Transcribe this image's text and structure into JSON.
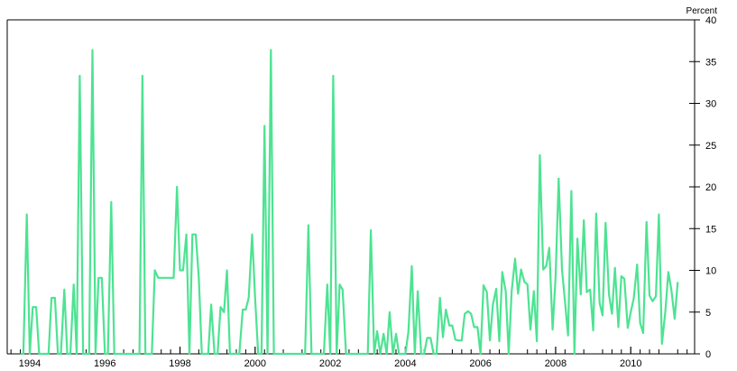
{
  "chart_data": {
    "type": "line",
    "title": "",
    "xlabel": "",
    "ylabel": "Percent",
    "ylabel_position": "top-right",
    "y_axis_side": "right",
    "grid": false,
    "xlim": [
      1993.4,
      2011.7
    ],
    "ylim": [
      0,
      40
    ],
    "y_ticks": [
      0,
      5,
      10,
      15,
      20,
      25,
      30,
      35,
      40
    ],
    "x_tick_labels": [
      "1994",
      "1996",
      "1998",
      "2000",
      "2002",
      "2004",
      "2006",
      "2008",
      "2010"
    ],
    "x_tick_values": [
      1994,
      1996,
      1998,
      2000,
      2002,
      2004,
      2006,
      2008,
      2010
    ],
    "series": [
      {
        "name": "",
        "color": "#4de392",
        "x": [
          1993.75,
          1993.83,
          1993.92,
          1994.0,
          1994.08,
          1994.17,
          1994.25,
          1994.33,
          1994.42,
          1994.5,
          1994.58,
          1994.67,
          1994.75,
          1994.83,
          1994.92,
          1995.0,
          1995.08,
          1995.17,
          1995.25,
          1995.33,
          1995.42,
          1995.5,
          1995.58,
          1995.67,
          1995.75,
          1995.83,
          1995.92,
          1996.0,
          1996.08,
          1996.17,
          1996.25,
          1996.33,
          1996.42,
          1996.5,
          1996.58,
          1996.67,
          1996.75,
          1996.83,
          1996.92,
          1997.0,
          1997.08,
          1997.17,
          1997.25,
          1997.33,
          1997.42,
          1997.5,
          1997.58,
          1997.67,
          1997.75,
          1997.83,
          1997.92,
          1998.0,
          1998.08,
          1998.17,
          1998.25,
          1998.33,
          1998.42,
          1998.5,
          1998.58,
          1998.67,
          1998.75,
          1998.83,
          1998.92,
          1999.0,
          1999.08,
          1999.17,
          1999.25,
          1999.33,
          1999.42,
          1999.5,
          1999.58,
          1999.67,
          1999.75,
          1999.83,
          1999.92,
          2000.0,
          2000.08,
          2000.17,
          2000.25,
          2000.33,
          2000.42,
          2000.5,
          2000.58,
          2000.67,
          2000.75,
          2000.83,
          2000.92,
          2001.0,
          2001.08,
          2001.17,
          2001.25,
          2001.33,
          2001.42,
          2001.5,
          2001.58,
          2001.67,
          2001.75,
          2001.83,
          2001.92,
          2002.0,
          2002.08,
          2002.17,
          2002.25,
          2002.33,
          2002.42,
          2002.5,
          2002.58,
          2002.67,
          2002.75,
          2002.83,
          2002.92,
          2003.0,
          2003.08,
          2003.17,
          2003.25,
          2003.33,
          2003.42,
          2003.5,
          2003.58,
          2003.67,
          2003.75,
          2003.83,
          2003.92,
          2004.0,
          2004.08,
          2004.17,
          2004.25,
          2004.33,
          2004.42,
          2004.5,
          2004.58,
          2004.67,
          2004.75,
          2004.83,
          2004.92,
          2005.0,
          2005.08,
          2005.17,
          2005.25,
          2005.33,
          2005.42,
          2005.5,
          2005.58,
          2005.67,
          2005.75,
          2005.83,
          2005.92,
          2006.0,
          2006.08,
          2006.17,
          2006.25,
          2006.33,
          2006.42,
          2006.5,
          2006.58,
          2006.67,
          2006.75,
          2006.83,
          2006.92,
          2007.0,
          2007.08,
          2007.17,
          2007.25,
          2007.33,
          2007.42,
          2007.5,
          2007.58,
          2007.67,
          2007.75,
          2007.83,
          2007.92,
          2008.0,
          2008.08,
          2008.17,
          2008.25,
          2008.33,
          2008.42,
          2008.5,
          2008.58,
          2008.67,
          2008.75,
          2008.83,
          2008.92,
          2009.0,
          2009.08,
          2009.17,
          2009.25,
          2009.33,
          2009.42,
          2009.5,
          2009.58,
          2009.67,
          2009.75,
          2009.83,
          2009.92,
          2010.0,
          2010.08,
          2010.17,
          2010.25,
          2010.33,
          2010.42,
          2010.5,
          2010.58,
          2010.67,
          2010.75,
          2010.83,
          2010.92,
          2011.0,
          2011.08,
          2011.17,
          2011.25
        ],
        "y": [
          0,
          0,
          16.7,
          0,
          5.6,
          5.6,
          0,
          0,
          0,
          0,
          6.7,
          6.7,
          0,
          0,
          7.7,
          0,
          0,
          8.3,
          0,
          33.3,
          0,
          0,
          0,
          36.4,
          0,
          9.1,
          9.1,
          0,
          0,
          18.2,
          0,
          0,
          0,
          0,
          0,
          0,
          0,
          0,
          0,
          33.3,
          0,
          0,
          0,
          10.0,
          9.1,
          9.1,
          9.1,
          9.1,
          9.1,
          9.1,
          20.0,
          10.0,
          10.0,
          14.3,
          0,
          14.3,
          14.3,
          9.1,
          0,
          0,
          0,
          5.9,
          0,
          0,
          5.6,
          5.0,
          10.0,
          0,
          0,
          0,
          0,
          5.3,
          5.3,
          6.7,
          14.3,
          6.7,
          0,
          0,
          27.3,
          0,
          36.4,
          0,
          0,
          0,
          0,
          0,
          0,
          0,
          0,
          0,
          0,
          0,
          15.4,
          0,
          0,
          0,
          0,
          0,
          8.3,
          0,
          33.3,
          0,
          8.3,
          7.7,
          0,
          0,
          0,
          0,
          0,
          0,
          0,
          0,
          14.8,
          0,
          2.7,
          0,
          2.4,
          0,
          5.0,
          0,
          2.4,
          0,
          0,
          0,
          2.6,
          10.5,
          0,
          7.5,
          0,
          0,
          1.9,
          1.9,
          0,
          0,
          6.7,
          2.0,
          5.3,
          3.4,
          3.4,
          1.7,
          1.6,
          1.6,
          4.8,
          5.1,
          4.8,
          3.2,
          3.2,
          0,
          8.2,
          7.4,
          1.6,
          5.9,
          7.8,
          1.5,
          9.8,
          7.5,
          0,
          7.5,
          11.4,
          7.2,
          10.1,
          8.6,
          8.3,
          2.9,
          7.5,
          1.5,
          23.8,
          10.1,
          10.5,
          12.7,
          2.9,
          9.2,
          21.0,
          10.1,
          6.3,
          2.2,
          19.5,
          0,
          13.8,
          7.1,
          16.0,
          7.4,
          7.7,
          2.8,
          16.8,
          6.1,
          4.6,
          15.7,
          7.1,
          4.8,
          10.3,
          3.2,
          9.3,
          9.0,
          3.1,
          5.0,
          6.6,
          10.7,
          3.7,
          2.5,
          15.8,
          7.0,
          6.3,
          6.9,
          16.7,
          1.2,
          5.0,
          9.8,
          7.7,
          4.2,
          8.6
        ]
      }
    ]
  }
}
